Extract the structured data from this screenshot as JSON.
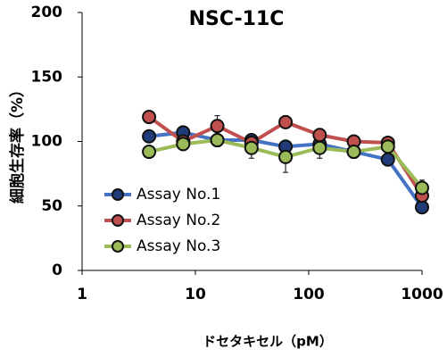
{
  "chart_data": {
    "type": "line",
    "title": "NSC-11C",
    "x_label": "ドセタキセル（pM）",
    "y_label": "細胞生存率（%）",
    "x": [
      3.9,
      7.8,
      15.6,
      31.25,
      62.5,
      125,
      250,
      500,
      1000
    ],
    "log_x": true,
    "xlim": [
      1,
      1000
    ],
    "xticks": [
      1,
      10,
      100,
      1000
    ],
    "ylim": [
      0,
      200
    ],
    "yticks": [
      0,
      50,
      100,
      150,
      200
    ],
    "legend": "left",
    "series": [
      {
        "name": "Assay No.1",
        "color": "#4472c4",
        "marker_color": "#1f3c78",
        "values": [
          104,
          107,
          101,
          101,
          96,
          98,
          92,
          86,
          49
        ],
        "errors": [
          3,
          3,
          4,
          3,
          4,
          3,
          3,
          3,
          3
        ]
      },
      {
        "name": "Assay No.2",
        "color": "#c0504d",
        "marker_color": "#c0504d",
        "values": [
          119,
          100,
          112,
          99,
          115,
          105,
          100,
          99,
          58
        ],
        "errors": [
          3,
          3,
          8,
          3,
          5,
          5,
          3,
          3,
          4
        ]
      },
      {
        "name": "Assay No.3",
        "color": "#9bbb59",
        "marker_color": "#9bbb59",
        "values": [
          92,
          98,
          101,
          95,
          88,
          95,
          92,
          96,
          64
        ],
        "errors": [
          3,
          5,
          4,
          8,
          12,
          8,
          5,
          3,
          6
        ]
      }
    ]
  }
}
